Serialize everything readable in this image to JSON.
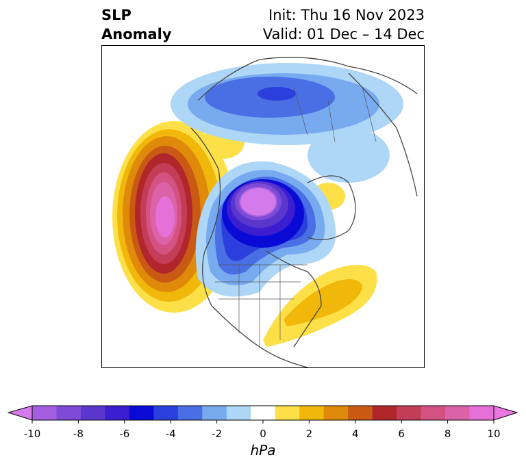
{
  "title": {
    "variable_line1": "SLP",
    "variable_line2": "Anomaly",
    "init": "Init: Thu 16 Nov 2023",
    "valid": "Valid: 01 Dec – 14 Dec"
  },
  "colorbar": {
    "unit": "hPa",
    "ticks": [
      "-10",
      "-8",
      "-6",
      "-4",
      "-2",
      "0",
      "2",
      "4",
      "6",
      "8",
      "10"
    ],
    "levels": [
      -10,
      -9,
      -8,
      -7,
      -6,
      -5,
      -4,
      -3,
      -2,
      -1,
      1,
      2,
      3,
      4,
      5,
      6,
      7,
      8,
      9,
      10
    ],
    "colors": [
      "#a45ee0",
      "#7e4bd6",
      "#5a37cc",
      "#3a1ed0",
      "#0a0ad6",
      "#2a3fdc",
      "#4a6ee4",
      "#78aaf0",
      "#aed6f6",
      "#ffffff",
      "#fde047",
      "#f1b70a",
      "#e08a0c",
      "#c95a14",
      "#b0262a",
      "#c43d58",
      "#d45282",
      "#dc62a8",
      "#e470d8"
    ],
    "extend_low_color": "#d47aea",
    "extend_high_color": "#e878e0",
    "extend": "both"
  },
  "map": {
    "projection": "north-polar-stereographic",
    "region": "Northern Hemisphere",
    "features": [
      {
        "name": "Strong high-pressure anomaly",
        "location": "Northeast Pacific / Gulf of Alaska",
        "peak_hpa": 10
      },
      {
        "name": "Deep low-pressure anomaly",
        "location": "Arctic Ocean / Canadian Arctic",
        "peak_hpa": -10
      },
      {
        "name": "Low-pressure anomaly",
        "location": "Northern Eurasia / Siberia",
        "peak_hpa": -6
      },
      {
        "name": "Positive anomaly",
        "location": "Western North Atlantic / US East Coast",
        "peak_hpa": 3
      },
      {
        "name": "Weak positive anomaly",
        "location": "Scandinavia",
        "peak_hpa": 1
      }
    ]
  }
}
